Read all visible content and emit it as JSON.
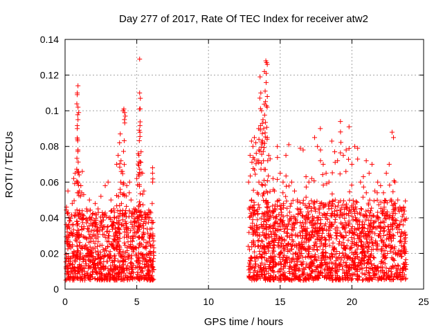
{
  "chart_data": {
    "type": "scatter",
    "title": "Day 277 of 2017, Rate Of TEC Index for receiver atw2",
    "xlabel": "GPS time / hours",
    "ylabel": "ROTI / TECUs",
    "xlim": [
      0,
      25
    ],
    "ylim": [
      0,
      0.14
    ],
    "x_ticks": [
      "0",
      "5",
      "10",
      "15",
      "20",
      "25"
    ],
    "y_ticks": [
      "0",
      "0.02",
      "0.04",
      "0.06",
      "0.08",
      "0.1",
      "0.12",
      "0.14"
    ],
    "grid": true,
    "marker": "+",
    "color": "#ff0000",
    "series": [
      {
        "points": [
          [
            0.1,
            0.046
          ],
          [
            0.2,
            0.055
          ],
          [
            0.3,
            0.03
          ],
          [
            0.5,
            0.048
          ],
          [
            0.6,
            0.062
          ],
          [
            0.7,
            0.065
          ],
          [
            0.8,
            0.038
          ],
          [
            0.85,
            0.109
          ],
          [
            0.85,
            0.11
          ],
          [
            0.9,
            0.114
          ],
          [
            0.85,
            0.09
          ],
          [
            0.9,
            0.095
          ],
          [
            0.95,
            0.099
          ],
          [
            0.9,
            0.078
          ],
          [
            1.0,
            0.055
          ],
          [
            1.1,
            0.058
          ],
          [
            1.2,
            0.066
          ],
          [
            1.3,
            0.053
          ],
          [
            1.5,
            0.045
          ],
          [
            1.7,
            0.05
          ],
          [
            1.9,
            0.042
          ],
          [
            2.1,
            0.048
          ],
          [
            2.3,
            0.045
          ],
          [
            2.5,
            0.052
          ],
          [
            2.8,
            0.058
          ],
          [
            3.0,
            0.06
          ],
          [
            3.2,
            0.05
          ],
          [
            3.4,
            0.045
          ],
          [
            3.6,
            0.07
          ],
          [
            3.7,
            0.075
          ],
          [
            3.8,
            0.082
          ],
          [
            3.85,
            0.087
          ],
          [
            3.9,
            0.072
          ],
          [
            4.0,
            0.066
          ],
          [
            4.05,
            0.1
          ],
          [
            4.1,
            0.101
          ],
          [
            4.15,
            0.099
          ],
          [
            4.2,
            0.097
          ],
          [
            4.3,
            0.058
          ],
          [
            4.5,
            0.06
          ],
          [
            4.6,
            0.05
          ],
          [
            4.8,
            0.045
          ],
          [
            5.0,
            0.062
          ],
          [
            5.1,
            0.076
          ],
          [
            5.15,
            0.075
          ],
          [
            5.2,
            0.129
          ],
          [
            5.2,
            0.11
          ],
          [
            5.25,
            0.107
          ],
          [
            5.2,
            0.101
          ],
          [
            5.3,
            0.077
          ],
          [
            5.4,
            0.065
          ],
          [
            5.5,
            0.055
          ],
          [
            5.7,
            0.042
          ],
          [
            5.9,
            0.04
          ],
          [
            6.1,
            0.068
          ],
          [
            6.1,
            0.065
          ],
          [
            6.1,
            0.06
          ],
          [
            12.8,
            0.06
          ],
          [
            12.9,
            0.075
          ],
          [
            13.0,
            0.083
          ],
          [
            13.1,
            0.08
          ],
          [
            13.2,
            0.085
          ],
          [
            13.3,
            0.082
          ],
          [
            13.4,
            0.072
          ],
          [
            13.5,
            0.071
          ],
          [
            13.5,
            0.09
          ],
          [
            13.6,
            0.119
          ],
          [
            13.65,
            0.11
          ],
          [
            13.7,
            0.1
          ],
          [
            13.75,
            0.093
          ],
          [
            13.8,
            0.095
          ],
          [
            13.85,
            0.09
          ],
          [
            13.9,
            0.122
          ],
          [
            13.95,
            0.111
          ],
          [
            14.0,
            0.128
          ],
          [
            14.05,
            0.127
          ],
          [
            14.1,
            0.126
          ],
          [
            14.1,
            0.085
          ],
          [
            14.2,
            0.075
          ],
          [
            14.3,
            0.073
          ],
          [
            14.5,
            0.062
          ],
          [
            14.6,
            0.055
          ],
          [
            14.8,
            0.08
          ],
          [
            15.0,
            0.065
          ],
          [
            15.2,
            0.06
          ],
          [
            15.4,
            0.075
          ],
          [
            15.6,
            0.081
          ],
          [
            15.8,
            0.06
          ],
          [
            16.0,
            0.055
          ],
          [
            16.2,
            0.05
          ],
          [
            16.4,
            0.079
          ],
          [
            16.6,
            0.078
          ],
          [
            16.8,
            0.063
          ],
          [
            17.0,
            0.06
          ],
          [
            17.2,
            0.062
          ],
          [
            17.4,
            0.085
          ],
          [
            17.6,
            0.08
          ],
          [
            17.8,
            0.09
          ],
          [
            18.0,
            0.07
          ],
          [
            18.2,
            0.065
          ],
          [
            18.4,
            0.06
          ],
          [
            18.6,
            0.083
          ],
          [
            18.8,
            0.077
          ],
          [
            19.0,
            0.072
          ],
          [
            19.2,
            0.094
          ],
          [
            19.4,
            0.075
          ],
          [
            19.6,
            0.078
          ],
          [
            19.8,
            0.091
          ],
          [
            20.0,
            0.07
          ],
          [
            20.2,
            0.08
          ],
          [
            20.4,
            0.079
          ],
          [
            20.6,
            0.06
          ],
          [
            20.8,
            0.063
          ],
          [
            21.0,
            0.072
          ],
          [
            21.2,
            0.065
          ],
          [
            21.4,
            0.07
          ],
          [
            21.6,
            0.055
          ],
          [
            21.8,
            0.06
          ],
          [
            22.0,
            0.058
          ],
          [
            22.2,
            0.054
          ],
          [
            22.4,
            0.065
          ],
          [
            22.6,
            0.07
          ],
          [
            22.8,
            0.088
          ],
          [
            22.9,
            0.085
          ],
          [
            23.0,
            0.06
          ],
          [
            23.2,
            0.05
          ],
          [
            23.4,
            0.045
          ],
          [
            23.6,
            0.042
          ]
        ],
        "density_bands": [
          {
            "x": [
              0.05,
              6.2
            ],
            "y": [
              0.005,
              0.045
            ]
          },
          {
            "x": [
              12.8,
              23.8
            ],
            "y": [
              0.005,
              0.05
            ]
          }
        ]
      }
    ]
  }
}
